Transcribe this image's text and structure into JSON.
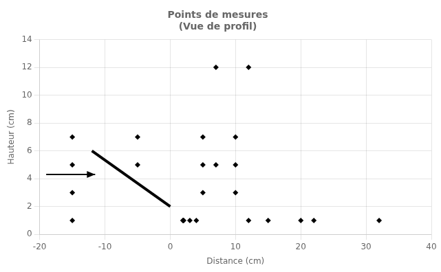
{
  "chart_data": {
    "type": "scatter",
    "title": [
      "Points de mesures",
      "(Vue de profil)"
    ],
    "xlabel": "Distance (cm)",
    "ylabel": "Hauteur (cm)",
    "xlim": [
      -20,
      40
    ],
    "ylim": [
      0,
      14
    ],
    "xticks": [
      -20,
      -10,
      0,
      10,
      20,
      30,
      40
    ],
    "yticks": [
      0,
      2,
      4,
      6,
      8,
      10,
      12,
      14
    ],
    "grid": true,
    "series": [
      {
        "type": "scatter",
        "marker": "diamond",
        "color": "#000000",
        "x": [
          -15,
          -15,
          -15,
          -15,
          -5,
          -5,
          2,
          2,
          2,
          2,
          2,
          2,
          2,
          2,
          3,
          4,
          5,
          5,
          5,
          7,
          7,
          10,
          10,
          10,
          12,
          12,
          15,
          20,
          22,
          32
        ],
        "values": [
          7,
          5,
          3,
          1,
          7,
          5,
          1,
          1,
          1,
          1,
          1,
          1,
          1,
          1,
          1,
          1,
          7,
          5,
          3,
          12,
          5,
          7,
          5,
          3,
          12,
          1,
          1,
          1,
          1,
          1
        ]
      },
      {
        "type": "line",
        "color": "#000000",
        "x": [
          -12,
          0
        ],
        "values": [
          6.0,
          2.0
        ]
      },
      {
        "type": "arrow",
        "color": "#000000",
        "x": [
          -19,
          -11.5
        ],
        "values": [
          4.3,
          4.3
        ]
      }
    ]
  }
}
